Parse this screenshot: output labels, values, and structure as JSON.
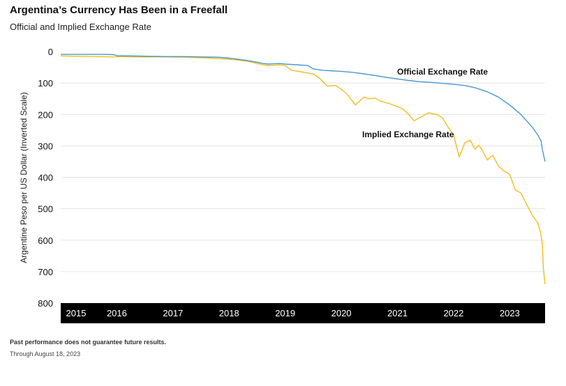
{
  "header": {
    "title": "Argentina’s Currency Has Been in a Freefall",
    "subtitle": "Official and Implied Exchange Rate"
  },
  "footer": {
    "disclaimer": "Past performance does not guarantee future results.",
    "through": "Through August 18, 2023"
  },
  "colors": {
    "official": "#4a98cf",
    "implied": "#f2bd1c",
    "xaxis_band": "#000000",
    "grid": "#e2e2e2"
  },
  "chart_data": {
    "type": "line",
    "title": "Argentina’s Currency Has Been in a Freefall",
    "subtitle": "Official and Implied Exchange Rate",
    "xlabel": "",
    "ylabel": "Argentine Peso per US Dollar (Inverted Scale)",
    "ylim": [
      0,
      800
    ],
    "y_inverted": true,
    "yticks": [
      0,
      100,
      200,
      300,
      400,
      500,
      600,
      700,
      800
    ],
    "xticks": [
      "2015",
      "2016",
      "2017",
      "2018",
      "2019",
      "2020",
      "2021",
      "2022",
      "2023"
    ],
    "xlim": [
      2015.0,
      2023.63
    ],
    "grid": true,
    "series": [
      {
        "name": "Official Exchange Rate",
        "color": "#4a98cf",
        "x": [
          2015.0,
          2015.2,
          2015.4,
          2015.6,
          2015.8,
          2015.95,
          2016.0,
          2016.3,
          2016.6,
          2016.9,
          2017.2,
          2017.5,
          2017.8,
          2017.95,
          2018.1,
          2018.3,
          2018.5,
          2018.6,
          2018.7,
          2018.9,
          2019.0,
          2019.2,
          2019.4,
          2019.5,
          2019.6,
          2019.7,
          2019.8,
          2020.0,
          2020.2,
          2020.4,
          2020.6,
          2020.8,
          2021.0,
          2021.2,
          2021.4,
          2021.6,
          2021.8,
          2022.0,
          2022.2,
          2022.4,
          2022.6,
          2022.8,
          2023.0,
          2023.2,
          2023.4,
          2023.5,
          2023.56,
          2023.58,
          2023.63
        ],
        "y": [
          9,
          9,
          9,
          9,
          9,
          10,
          13,
          14,
          15,
          16,
          16,
          17,
          18,
          20,
          23,
          28,
          34,
          38,
          40,
          38,
          40,
          42,
          44,
          55,
          58,
          60,
          61,
          63,
          66,
          71,
          76,
          82,
          87,
          92,
          96,
          98,
          101,
          104,
          108,
          116,
          128,
          145,
          170,
          200,
          240,
          265,
          285,
          310,
          350
        ]
      },
      {
        "name": "Implied Exchange Rate",
        "color": "#f2bd1c",
        "x": [
          2015.0,
          2015.3,
          2015.6,
          2015.95,
          2016.0,
          2016.4,
          2016.8,
          2017.2,
          2017.6,
          2017.95,
          2018.1,
          2018.3,
          2018.5,
          2018.6,
          2018.7,
          2018.9,
          2019.0,
          2019.1,
          2019.2,
          2019.4,
          2019.5,
          2019.6,
          2019.75,
          2019.9,
          2020.0,
          2020.1,
          2020.25,
          2020.4,
          2020.5,
          2020.6,
          2020.7,
          2020.85,
          2021.0,
          2021.1,
          2021.2,
          2021.3,
          2021.45,
          2021.55,
          2021.7,
          2021.8,
          2021.9,
          2022.0,
          2022.1,
          2022.2,
          2022.3,
          2022.38,
          2022.45,
          2022.5,
          2022.6,
          2022.7,
          2022.8,
          2022.9,
          2023.0,
          2023.1,
          2023.2,
          2023.3,
          2023.4,
          2023.5,
          2023.55,
          2023.58,
          2023.6,
          2023.63
        ],
        "y": [
          14,
          15,
          16,
          17,
          16,
          17,
          17,
          18,
          20,
          24,
          26,
          30,
          38,
          42,
          45,
          42,
          45,
          58,
          62,
          68,
          71,
          83,
          110,
          108,
          120,
          135,
          170,
          145,
          150,
          148,
          158,
          165,
          175,
          183,
          200,
          220,
          205,
          195,
          200,
          210,
          240,
          265,
          335,
          290,
          282,
          310,
          298,
          310,
          345,
          330,
          365,
          380,
          390,
          440,
          450,
          485,
          520,
          545,
          575,
          610,
          690,
          740
        ]
      }
    ],
    "annotations": [
      "Official Exchange Rate",
      "Implied Exchange Rate"
    ]
  }
}
